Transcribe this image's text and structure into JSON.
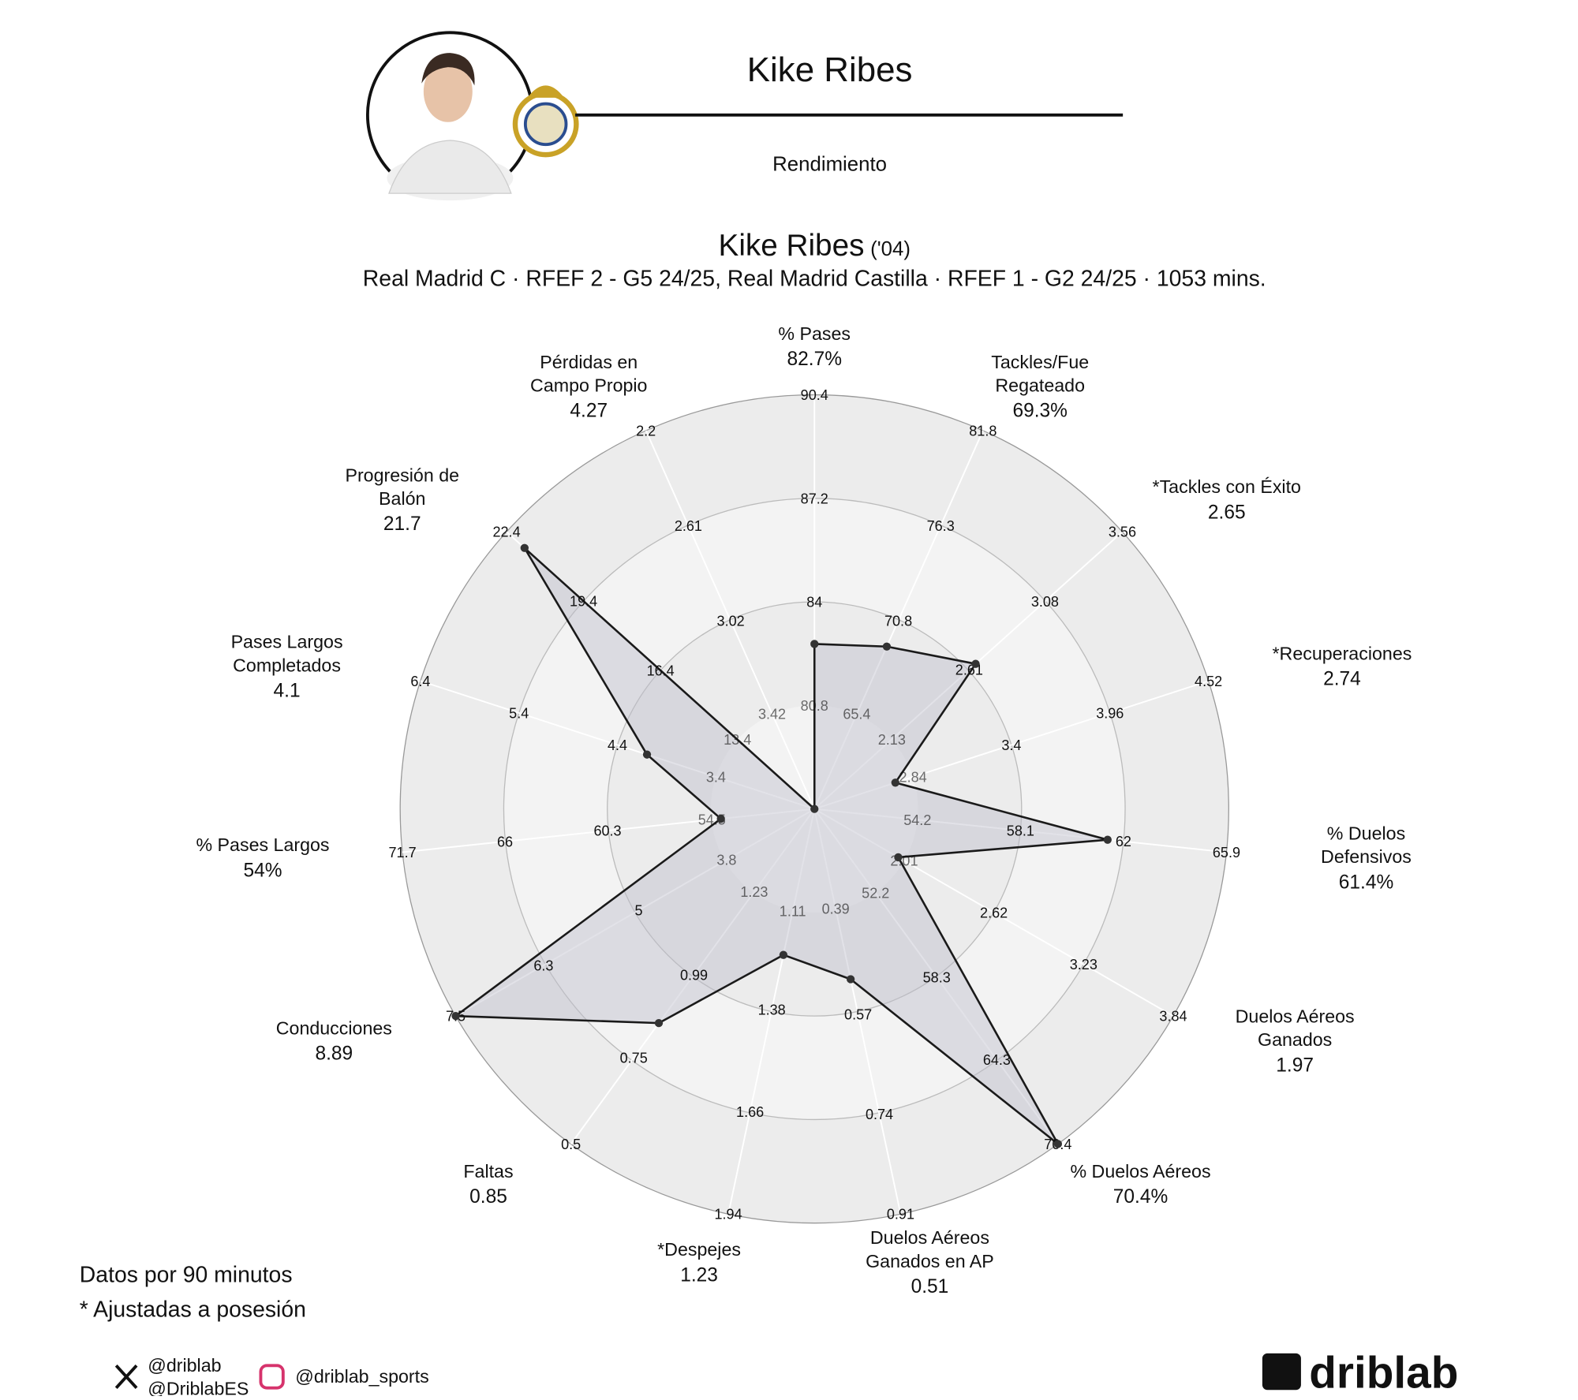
{
  "header": {
    "title": "Kike Ribes",
    "subtitle": "Rendimiento"
  },
  "chart_data": {
    "type": "radar",
    "title": "Kike Ribes",
    "title_suffix": "('04)",
    "subtitle": "Real Madrid C · RFEF 2 - G5 24/25, Real Madrid Castilla · RFEF 1 - G2 24/25 · 1053 mins.",
    "color": "#1a1a1a",
    "axes": [
      {
        "name": [
          "% Pases"
        ],
        "value": 82.7,
        "value_label": "82.7%",
        "ylim": [
          77.6,
          90.4
        ],
        "ticks": [
          80.8,
          84,
          87.2,
          90.4
        ]
      },
      {
        "name": [
          "Tackles/Fue",
          "Regateado"
        ],
        "value": 69.3,
        "value_label": "69.3%",
        "ylim": [
          59.9,
          81.8
        ],
        "ticks": [
          65.4,
          70.8,
          76.3,
          81.8
        ]
      },
      {
        "name": [
          "*Tackles con Éxito"
        ],
        "value": 2.65,
        "ylim": [
          1.65,
          3.56
        ],
        "ticks": [
          2.13,
          2.61,
          3.08,
          3.56
        ]
      },
      {
        "name": [
          "*Recuperaciones"
        ],
        "value": 2.74,
        "ylim": [
          2.28,
          4.52
        ],
        "ticks": [
          2.84,
          3.4,
          3.96,
          4.52
        ]
      },
      {
        "name": [
          "% Duelos",
          "Defensivos"
        ],
        "value": 61.4,
        "value_label": "61.4%",
        "ylim": [
          50.3,
          65.9
        ],
        "ticks": [
          54.2,
          58.1,
          62,
          65.9
        ]
      },
      {
        "name": [
          "Duelos Aéreos",
          "Ganados"
        ],
        "value": 1.97,
        "ylim": [
          1.4,
          3.84
        ],
        "ticks": [
          2.01,
          2.62,
          3.23,
          3.84
        ]
      },
      {
        "name": [
          "% Duelos Aéreos"
        ],
        "value": 70.4,
        "value_label": "70.4%",
        "ylim": [
          46.1,
          70.4
        ],
        "ticks": [
          52.2,
          58.3,
          64.3,
          70.4
        ]
      },
      {
        "name": [
          "Duelos Aéreos",
          "Ganados en AP"
        ],
        "value": 0.51,
        "ylim": [
          0.22,
          0.91
        ],
        "ticks": [
          0.39,
          0.57,
          0.74,
          0.91
        ]
      },
      {
        "name": [
          "*Despejes"
        ],
        "value": 1.23,
        "ylim": [
          0.83,
          1.94
        ],
        "ticks": [
          1.11,
          1.38,
          1.66,
          1.94
        ]
      },
      {
        "name": [
          "Faltas"
        ],
        "value": 0.85,
        "ylim": [
          1.47,
          0.5
        ],
        "ticks": [
          1.23,
          0.99,
          0.75,
          0.5
        ]
      },
      {
        "name": [
          "Conducciones"
        ],
        "value": 8.89,
        "ylim": [
          2.6,
          7.5
        ],
        "ticks": [
          3.8,
          5,
          6.3,
          7.5
        ]
      },
      {
        "name": [
          "% Pases Largos"
        ],
        "value": 54,
        "value_label": "54%",
        "ylim": [
          48.8,
          71.7
        ],
        "ticks": [
          54.5,
          60.3,
          66,
          71.7
        ]
      },
      {
        "name": [
          "Pases Largos",
          "Completados"
        ],
        "value": 4.1,
        "ylim": [
          2.4,
          6.4
        ],
        "ticks": [
          3.4,
          4.4,
          5.4,
          6.4
        ]
      },
      {
        "name": [
          "Progresión de",
          "Balón"
        ],
        "value": 21.7,
        "ylim": [
          10.4,
          22.4
        ],
        "ticks": [
          13.4,
          16.4,
          19.4,
          22.4
        ]
      },
      {
        "name": [
          "Pérdidas en",
          "Campo Propio"
        ],
        "value": 4.27,
        "ylim": [
          3.83,
          2.2
        ],
        "ticks": [
          3.42,
          3.02,
          2.61,
          2.2
        ]
      }
    ]
  },
  "footer": {
    "notes": [
      "Datos por 90 minutos",
      "* Ajustadas a posesión"
    ],
    "social_x": [
      "@driblab",
      "@DriblabES"
    ],
    "social_instagram": "@driblab_sports",
    "brand": "driblab"
  }
}
